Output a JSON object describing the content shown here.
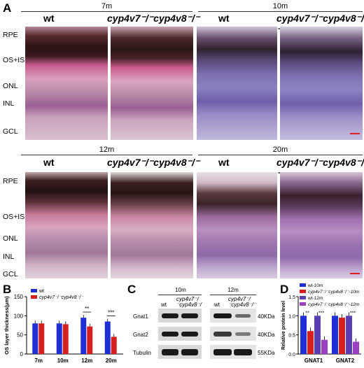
{
  "panelA": {
    "label": "A",
    "top_row": {
      "left_time": "7m",
      "right_time": "10m"
    },
    "bottom_row": {
      "left_time": "12m",
      "right_time": "20m"
    },
    "genotype_wt": "wt",
    "genotype_ko": "cyp4v7⁻/⁻cyp4v8⁻/⁻",
    "layers": [
      "RPE",
      "OS+IS",
      "ONL",
      "INL",
      "GCL"
    ]
  },
  "panelB": {
    "label": "B",
    "chart_data": {
      "type": "bar",
      "ylabel": "OS layer thickness(μm)",
      "categories": [
        "7m",
        "10m",
        "12m",
        "20m"
      ],
      "series": [
        {
          "name": "wt",
          "values": [
            80,
            80,
            95,
            85
          ],
          "color": "#1f2fd6"
        },
        {
          "name": "cyp4v7⁻/⁻cyp4v8⁻/⁻",
          "values": [
            80,
            78,
            72,
            45
          ],
          "color": "#d62020"
        }
      ],
      "ylim": [
        0,
        150
      ],
      "yticks": [
        0,
        50,
        100,
        150
      ],
      "annotations": [
        {
          "category": "12m",
          "text": "**"
        },
        {
          "category": "20m",
          "text": "***"
        }
      ]
    }
  },
  "panelC": {
    "label": "C",
    "groups": [
      {
        "time": "10m",
        "lanes": [
          "wt",
          "cyp4v7⁻/⁻cyp4v8⁻/⁻"
        ]
      },
      {
        "time": "12m",
        "lanes": [
          "wt",
          "cyp4v7⁻/⁻cyp4v8⁻/⁻"
        ]
      }
    ],
    "rows": [
      {
        "name": "Gnat1",
        "size": "40KDa"
      },
      {
        "name": "Gnat2",
        "size": "40KDa"
      },
      {
        "name": "Tubulin",
        "size": "55KDa"
      }
    ]
  },
  "panelD": {
    "label": "D",
    "chart_data": {
      "type": "bar",
      "ylabel": "Relative protein level",
      "categories": [
        "GNAT1",
        "GNAT2"
      ],
      "series": [
        {
          "name": "wt-10m",
          "values": [
            1.0,
            1.0
          ],
          "color": "#1f2fd6"
        },
        {
          "name": "cyp4v7⁻/⁻cyp4v8⁻/⁻-10m",
          "values": [
            0.6,
            0.95
          ],
          "color": "#d62020"
        },
        {
          "name": "wt-12m",
          "values": [
            1.0,
            1.0
          ],
          "color": "#5a3fb0"
        },
        {
          "name": "cyp4v7⁻/⁻cyp4v8⁻/⁻-12m",
          "values": [
            0.37,
            0.32
          ],
          "color": "#9b40c0"
        }
      ],
      "ylim": [
        0,
        1.5
      ],
      "yticks": [
        0.0,
        0.5,
        1.0,
        1.5
      ],
      "annotations": [
        {
          "category": "GNAT1",
          "text": "**"
        },
        {
          "category": "GNAT1",
          "text": "***"
        },
        {
          "category": "GNAT2",
          "text": "***"
        }
      ]
    }
  }
}
